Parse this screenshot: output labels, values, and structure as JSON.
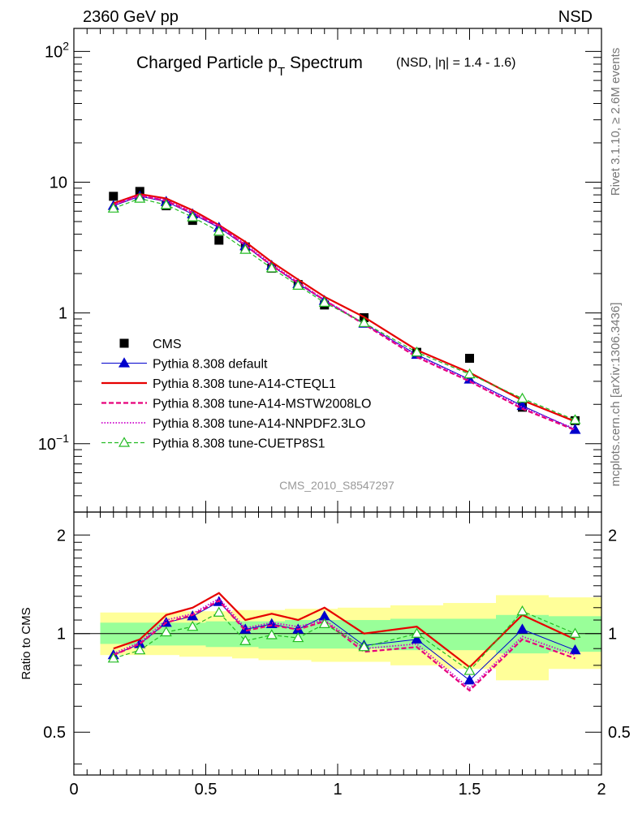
{
  "header": {
    "left": "2360 GeV pp",
    "right": "NSD"
  },
  "title": {
    "main_a": "Charged Particle p",
    "main_sub": "T",
    "main_b": " Spectrum",
    "small": "(NSD, |η| = 1.4 - 1.6)"
  },
  "side_labels": {
    "rivet": "Rivet 3.1.10, ≥ 2.6M events",
    "mcplots": "mcplots.cern.ch [arXiv:1306.3436]"
  },
  "watermark": "CMS_2010_S8547297",
  "colors": {
    "data": "#000000",
    "default": "#0000cc",
    "cteql1": "#e60000",
    "mstw": "#e6007a",
    "nnpdf": "#cc00cc",
    "cuetp8s1": "#22bb22",
    "band_inner": "#99ff99",
    "band_outer": "#ffff99"
  },
  "chart_data": [
    {
      "type": "scatter",
      "id": "main",
      "x": [
        0.15,
        0.25,
        0.35,
        0.45,
        0.55,
        0.65,
        0.75,
        0.85,
        0.95,
        1.1,
        1.3,
        1.5,
        1.7,
        1.9
      ],
      "xlim": [
        0,
        2
      ],
      "ylim": [
        0.03,
        150
      ],
      "yscale": "log",
      "ytick_labels": {
        "10^2": "10",
        "10^2_exp": "2",
        "10": "10",
        "1": "1",
        "10^-1": "10",
        "10^-1_exp": "−1"
      },
      "series": [
        {
          "name": "CMS",
          "style": "data",
          "values": [
            7.8,
            8.5,
            6.6,
            5.1,
            3.6,
            3.2,
            2.2,
            1.65,
            1.15,
            0.92,
            0.5,
            0.45,
            0.19,
            0.15
          ]
        },
        {
          "name": "Pythia 8.308 default",
          "style": "default",
          "values": [
            6.6,
            7.8,
            7.1,
            5.7,
            4.5,
            3.25,
            2.3,
            1.67,
            1.24,
            0.83,
            0.48,
            0.31,
            0.195,
            0.128
          ]
        },
        {
          "name": "Pythia 8.308 tune-A14-CTEQL1",
          "style": "cteql1",
          "values": [
            6.9,
            8.1,
            7.5,
            6.1,
            4.7,
            3.5,
            2.45,
            1.8,
            1.33,
            0.93,
            0.52,
            0.35,
            0.215,
            0.148
          ]
        },
        {
          "name": "Pythia 8.308 tune-A14-MSTW2008LO",
          "style": "mstw",
          "values": [
            6.7,
            7.9,
            7.2,
            5.8,
            4.6,
            3.3,
            2.3,
            1.7,
            1.25,
            0.82,
            0.46,
            0.3,
            0.185,
            0.127
          ]
        },
        {
          "name": "Pythia 8.308 tune-A14-NNPDF2.3LO",
          "style": "nnpdf",
          "values": [
            6.75,
            7.95,
            7.3,
            5.9,
            4.65,
            3.35,
            2.35,
            1.72,
            1.26,
            0.83,
            0.47,
            0.305,
            0.19,
            0.13
          ]
        },
        {
          "name": "Pythia 8.308 tune-CUETP8S1",
          "style": "cuetp8s1",
          "values": [
            6.3,
            7.5,
            6.7,
            5.4,
            4.2,
            3.05,
            2.2,
            1.62,
            1.2,
            0.84,
            0.5,
            0.34,
            0.222,
            0.152
          ]
        }
      ]
    },
    {
      "type": "line",
      "id": "ratio",
      "ylabel": "Ratio to CMS",
      "x": [
        0.15,
        0.25,
        0.35,
        0.45,
        0.55,
        0.65,
        0.75,
        0.85,
        0.95,
        1.1,
        1.3,
        1.5,
        1.7,
        1.9
      ],
      "xlim": [
        0,
        2
      ],
      "ylim": [
        0.37,
        2.35
      ],
      "yscale": "log",
      "xtick_labels": [
        "0",
        "0.5",
        "1",
        "1.5",
        "2"
      ],
      "ytick_labels": [
        "0.5",
        "1",
        "2"
      ],
      "bands": {
        "edges": [
          0.1,
          0.2,
          0.3,
          0.4,
          0.5,
          0.6,
          0.7,
          0.8,
          0.9,
          1.0,
          1.2,
          1.4,
          1.6,
          1.8,
          2.0
        ],
        "inner_low": [
          0.93,
          0.92,
          0.92,
          0.92,
          0.91,
          0.91,
          0.9,
          0.9,
          0.9,
          0.9,
          0.89,
          0.89,
          0.87,
          0.88
        ],
        "inner_high": [
          1.08,
          1.08,
          1.08,
          1.08,
          1.09,
          1.09,
          1.09,
          1.1,
          1.1,
          1.1,
          1.11,
          1.11,
          1.14,
          1.13
        ],
        "outer_low": [
          0.86,
          0.86,
          0.86,
          0.85,
          0.85,
          0.84,
          0.83,
          0.83,
          0.82,
          0.82,
          0.8,
          0.78,
          0.72,
          0.78
        ],
        "outer_high": [
          1.16,
          1.16,
          1.16,
          1.17,
          1.17,
          1.18,
          1.18,
          1.19,
          1.19,
          1.2,
          1.22,
          1.24,
          1.31,
          1.29
        ]
      },
      "series": [
        {
          "name": "Pythia 8.308 default",
          "style": "default",
          "values": [
            0.86,
            0.93,
            1.08,
            1.13,
            1.25,
            1.03,
            1.07,
            1.03,
            1.13,
            0.92,
            0.96,
            0.72,
            1.03,
            0.89
          ]
        },
        {
          "name": "Pythia 8.308 tune-A14-CTEQL1",
          "style": "cteql1",
          "values": [
            0.9,
            0.96,
            1.14,
            1.2,
            1.33,
            1.1,
            1.15,
            1.1,
            1.2,
            1.0,
            1.05,
            0.79,
            1.14,
            0.96
          ]
        },
        {
          "name": "Pythia 8.308 tune-A14-MSTW2008LO",
          "style": "mstw",
          "values": [
            0.86,
            0.93,
            1.08,
            1.14,
            1.26,
            1.02,
            1.06,
            1.03,
            1.09,
            0.88,
            0.91,
            0.67,
            0.96,
            0.84
          ]
        },
        {
          "name": "Pythia 8.308 tune-A14-NNPDF2.3LO",
          "style": "nnpdf",
          "values": [
            0.87,
            0.94,
            1.1,
            1.15,
            1.28,
            1.04,
            1.08,
            1.05,
            1.1,
            0.9,
            0.93,
            0.68,
            0.98,
            0.86
          ]
        },
        {
          "name": "Pythia 8.308 tune-CUETP8S1",
          "style": "cuetp8s1",
          "values": [
            0.84,
            0.89,
            1.01,
            1.05,
            1.16,
            0.95,
            0.99,
            0.97,
            1.07,
            0.91,
            1.0,
            0.77,
            1.17,
            1.0
          ]
        }
      ]
    }
  ]
}
